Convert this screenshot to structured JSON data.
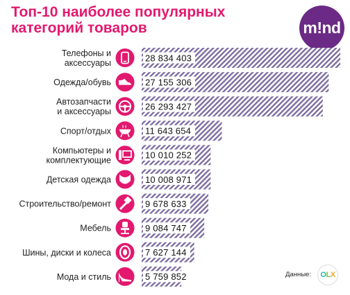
{
  "title": {
    "line1": "Топ-10 наиболее популярных",
    "line2": "категорий товаров"
  },
  "logo": {
    "text": "m!nd",
    "color": "#6b2a86"
  },
  "source": {
    "label": "Данные:",
    "logo_text": "OLX"
  },
  "colors": {
    "accent": "#e2196e",
    "bar_stripe": "#7c6ca0",
    "icon_bg": "#e2196e"
  },
  "chart_data": {
    "type": "bar",
    "orientation": "horizontal",
    "title": "Топ-10 наиболее популярных категорий товаров",
    "xlim": [
      0,
      28834403
    ],
    "categories": [
      "Телефоны и аксессуары",
      "Одежда/обувь",
      "Автозапчасти и аксессуары",
      "Спорт/отдых",
      "Компьютеры и комплектующие",
      "Детская одежда",
      "Строительство/ремонт",
      "Мебель",
      "Шины, диски и колеса",
      "Мода и стиль"
    ],
    "category_lines": [
      [
        "Телефоны и",
        "аксессуары"
      ],
      [
        "Одежда/обувь"
      ],
      [
        "Автозапчасти",
        "и аксессуары"
      ],
      [
        "Спорт/отдых"
      ],
      [
        "Компьютеры и",
        "комплектующие"
      ],
      [
        "Детская одежда"
      ],
      [
        "Строительство/ремонт"
      ],
      [
        "Мебель"
      ],
      [
        "Шины, диски и колеса"
      ],
      [
        "Мода и стиль"
      ]
    ],
    "values": [
      28834403,
      27155306,
      26293427,
      11643654,
      10010252,
      10008971,
      9678633,
      9084747,
      7627144,
      5759852
    ],
    "value_labels": [
      "28 834 403",
      "27 155 306",
      "26 293 427",
      "11 643 654",
      "10 010 252",
      "10 008 971",
      "9 678 633",
      "9 084 747",
      "7 627 144",
      "5 759 852"
    ],
    "icons": [
      "phone-icon",
      "sneaker-icon",
      "steering-wheel-icon",
      "grill-icon",
      "computer-icon",
      "baby-bib-icon",
      "paint-roller-icon",
      "office-chair-icon",
      "tire-icon",
      "high-heel-icon"
    ]
  }
}
